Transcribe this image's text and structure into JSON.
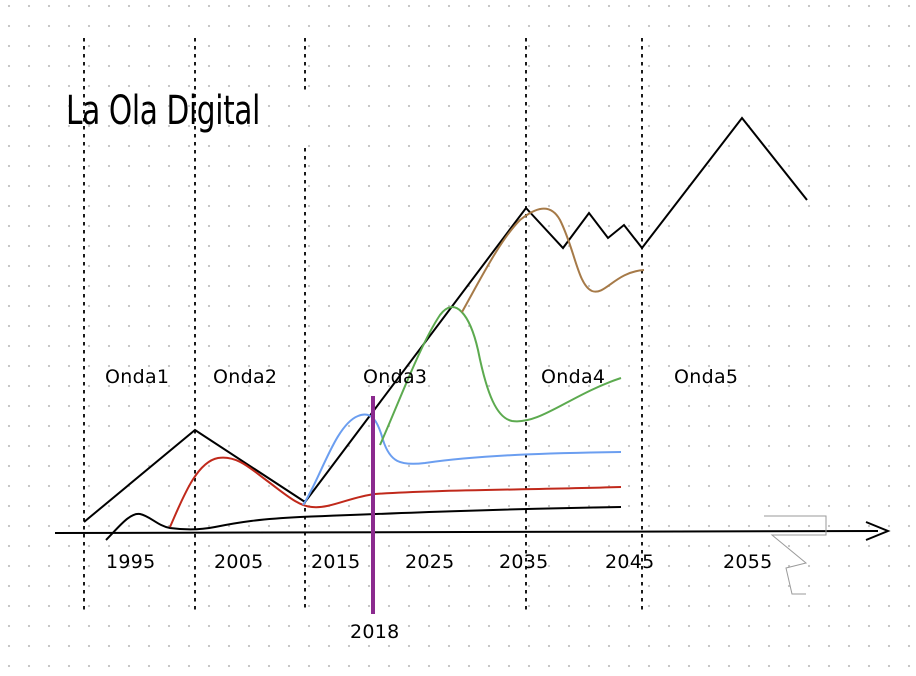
{
  "title": "La Ola Digital",
  "waves": [
    "Onda1",
    "Onda2",
    "Onda3",
    "Onda4",
    "Onda5"
  ],
  "years": [
    "1995",
    "2005",
    "2015",
    "2025",
    "2035",
    "2045",
    "2055"
  ],
  "marker": {
    "label": "2018",
    "color": "#8b2a8e"
  },
  "colors": {
    "envelope": "#000000",
    "red": "#c0291b",
    "blue": "#6b9ef0",
    "green": "#5caa4f",
    "brown": "#a67a48",
    "baseline": "#000000"
  }
}
